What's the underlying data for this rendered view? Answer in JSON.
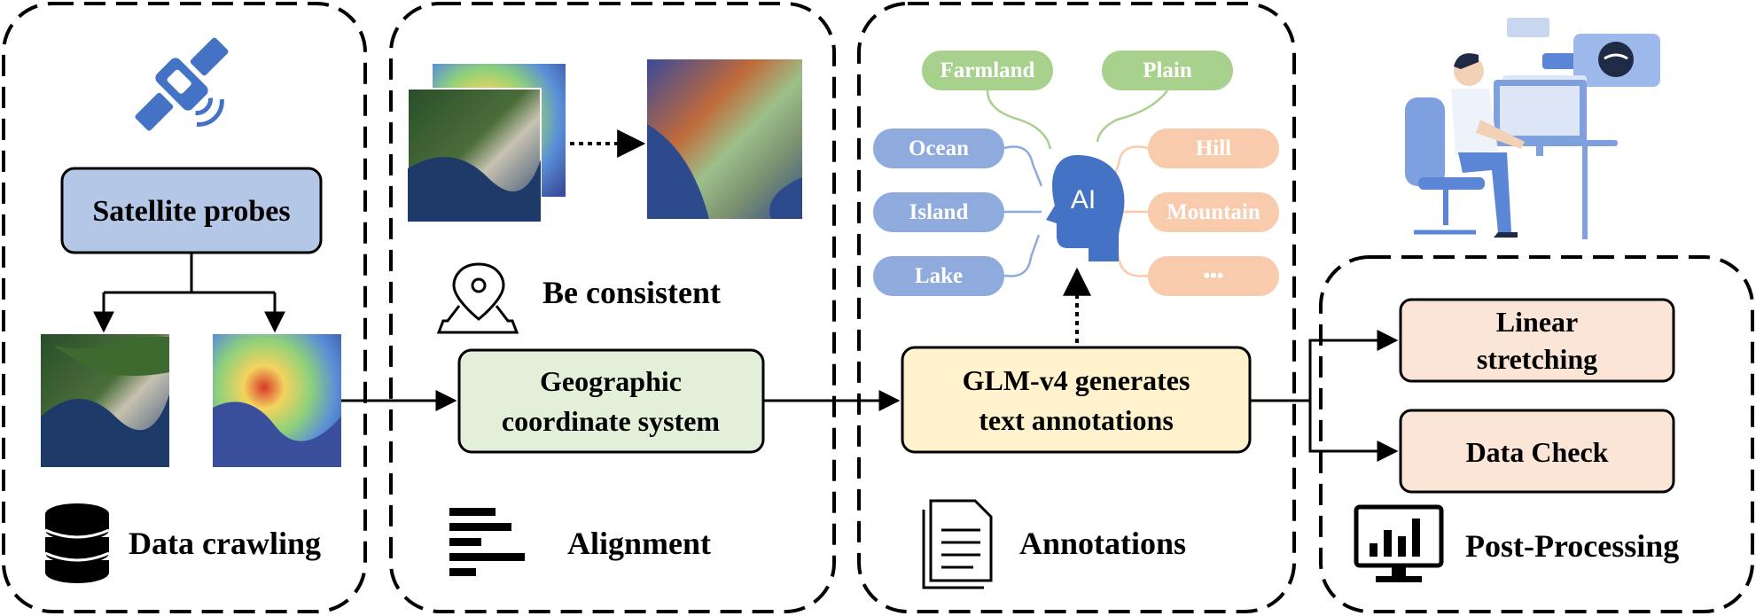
{
  "panels": {
    "crawling": {
      "label": "Data crawling",
      "source_box": "Satellite probes"
    },
    "alignment": {
      "label": "Alignment",
      "consistency_label": "Be consistent",
      "box_line1": "Geographic",
      "box_line2": "coordinate system"
    },
    "annotations": {
      "label": "Annotations",
      "ai_label": "AI",
      "box_line1": "GLM-v4 generates",
      "box_line2": "text annotations",
      "tags_green": [
        "Farmland",
        "Plain"
      ],
      "tags_blue": [
        "Ocean",
        "Island",
        "Lake"
      ],
      "tags_orange": [
        "Hill",
        "Mountain",
        "•••"
      ]
    },
    "postprocessing": {
      "label": "Post-Processing",
      "box1_line1": "Linear",
      "box1_line2": "stretching",
      "box2": "Data Check"
    }
  },
  "colors": {
    "satellite_icon": "#4472C4",
    "source_box_fill": "#B4C7E7",
    "align_box_fill": "#E2F0D9",
    "annot_box_fill": "#FFF2CC",
    "post_box_fill": "#FBE5D6",
    "tag_green": "#A9D18E",
    "tag_blue": "#8FAADC",
    "tag_orange": "#F8CBAD",
    "ai_head": "#4472C4"
  },
  "icons": [
    "satellite-icon",
    "database-icon",
    "map-pin-icon",
    "align-left-icon",
    "document-icon",
    "ai-head-icon",
    "monitor-chart-icon",
    "person-at-computer-illustration"
  ]
}
